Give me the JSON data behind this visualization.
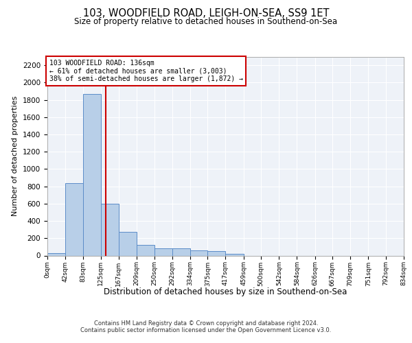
{
  "title1": "103, WOODFIELD ROAD, LEIGH-ON-SEA, SS9 1ET",
  "title2": "Size of property relative to detached houses in Southend-on-Sea",
  "xlabel": "Distribution of detached houses by size in Southend-on-Sea",
  "ylabel": "Number of detached properties",
  "footer1": "Contains HM Land Registry data © Crown copyright and database right 2024.",
  "footer2": "Contains public sector information licensed under the Open Government Licence v3.0.",
  "annotation_line1": "103 WOODFIELD ROAD: 136sqm",
  "annotation_line2": "← 61% of detached houses are smaller (3,003)",
  "annotation_line3": "38% of semi-detached houses are larger (1,872) →",
  "property_size": 136,
  "bin_edges": [
    0,
    42,
    83,
    125,
    167,
    209,
    250,
    292,
    334,
    375,
    417,
    459,
    500,
    542,
    584,
    626,
    667,
    709,
    751,
    792,
    834
  ],
  "bar_heights": [
    30,
    840,
    1870,
    600,
    270,
    120,
    80,
    80,
    60,
    50,
    20,
    0,
    0,
    0,
    0,
    0,
    0,
    0,
    0,
    0
  ],
  "bar_color": "#b8cfe8",
  "bar_edge_color": "#5b8cc8",
  "vline_color": "#cc0000",
  "annotation_box_color": "#cc0000",
  "background_color": "#eef2f8",
  "grid_color": "#ffffff",
  "ylim": [
    0,
    2300
  ],
  "yticks": [
    0,
    200,
    400,
    600,
    800,
    1000,
    1200,
    1400,
    1600,
    1800,
    2000,
    2200
  ]
}
